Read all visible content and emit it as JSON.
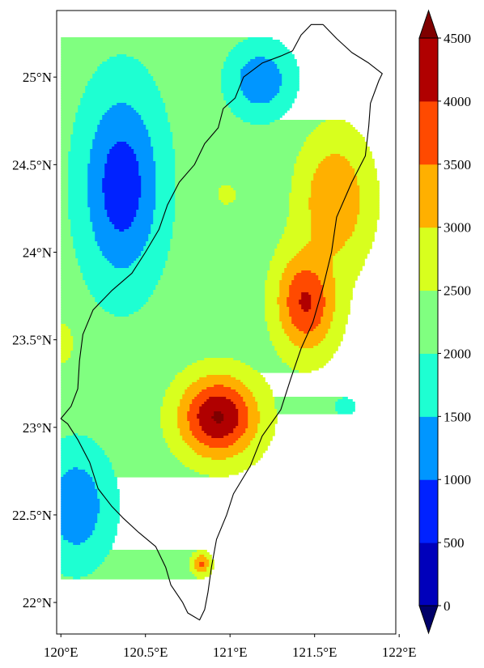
{
  "chart_data": {
    "type": "filled-contour-map",
    "title": "",
    "xlabel": "",
    "ylabel": "",
    "x_ticks": [
      {
        "value": 120.0,
        "label": "120°E"
      },
      {
        "value": 120.5,
        "label": "120.5°E"
      },
      {
        "value": 121.0,
        "label": "121°E"
      },
      {
        "value": 121.5,
        "label": "121.5°E"
      },
      {
        "value": 122.0,
        "label": "122°E"
      }
    ],
    "y_ticks": [
      {
        "value": 25.0,
        "label": "25°N"
      },
      {
        "value": 24.5,
        "label": "24.5°N"
      },
      {
        "value": 24.0,
        "label": "24°N"
      },
      {
        "value": 23.5,
        "label": "23.5°N"
      },
      {
        "value": 23.0,
        "label": "23°N"
      },
      {
        "value": 22.5,
        "label": "22.5°N"
      },
      {
        "value": 22.0,
        "label": "22°N"
      }
    ],
    "lon_range": [
      119.975,
      121.98
    ],
    "lat_range": [
      21.82,
      25.38
    ],
    "data_lon_range": [
      120.0,
      121.98
    ],
    "data_lat_range": [
      21.9,
      25.38
    ],
    "colorbar": {
      "levels": [
        0,
        500,
        1000,
        1500,
        2000,
        2500,
        3000,
        3500,
        4000,
        4500
      ],
      "labels": [
        "0",
        "500",
        "1000",
        "1500",
        "2000",
        "2500",
        "3000",
        "3500",
        "4000",
        "4500"
      ],
      "colors": [
        "#0000bb",
        "#0022ff",
        "#0096ff",
        "#1effd2",
        "#80ff80",
        "#d8ff1e",
        "#ffb000",
        "#ff4a00",
        "#b00000"
      ],
      "under_color": "#00006a",
      "over_color": "#7f0000",
      "extend": "both"
    },
    "background_level": 2250,
    "field_features": [
      {
        "lon": 120.36,
        "lat": 24.38,
        "value": 700,
        "rx": 0.3,
        "ry": 0.7
      },
      {
        "lon": 121.18,
        "lat": 24.98,
        "value": 1100,
        "rx": 0.24,
        "ry": 0.26
      },
      {
        "lon": 120.98,
        "lat": 24.33,
        "value": 2700,
        "rx": 0.09,
        "ry": 0.09
      },
      {
        "lon": 120.93,
        "lat": 23.06,
        "value": 4550,
        "rx": 0.29,
        "ry": 0.29
      },
      {
        "lon": 121.45,
        "lat": 23.72,
        "value": 4100,
        "rx": 0.22,
        "ry": 0.36
      },
      {
        "lon": 121.62,
        "lat": 24.3,
        "value": 3500,
        "rx": 0.26,
        "ry": 0.46
      },
      {
        "lon": 120.83,
        "lat": 22.22,
        "value": 3600,
        "rx": 0.07,
        "ry": 0.08
      },
      {
        "lon": 120.09,
        "lat": 22.55,
        "value": 1100,
        "rx": 0.26,
        "ry": 0.42
      },
      {
        "lon": 120.01,
        "lat": 23.48,
        "value": 2900,
        "rx": 0.08,
        "ry": 0.15
      },
      {
        "lon": 121.68,
        "lat": 23.12,
        "value": 1500,
        "rx": 0.07,
        "ry": 0.06
      }
    ],
    "coastline": [
      [
        121.55,
        25.3
      ],
      [
        121.48,
        25.3
      ],
      [
        121.42,
        25.24
      ],
      [
        121.37,
        25.15
      ],
      [
        121.3,
        25.12
      ],
      [
        121.19,
        25.08
      ],
      [
        121.08,
        25.0
      ],
      [
        121.03,
        24.88
      ],
      [
        120.96,
        24.82
      ],
      [
        120.93,
        24.71
      ],
      [
        120.85,
        24.62
      ],
      [
        120.79,
        24.5
      ],
      [
        120.7,
        24.4
      ],
      [
        120.63,
        24.27
      ],
      [
        120.58,
        24.13
      ],
      [
        120.5,
        24.0
      ],
      [
        120.42,
        23.88
      ],
      [
        120.3,
        23.78
      ],
      [
        120.19,
        23.67
      ],
      [
        120.13,
        23.53
      ],
      [
        120.11,
        23.38
      ],
      [
        120.1,
        23.22
      ],
      [
        120.06,
        23.12
      ],
      [
        120.0,
        23.05
      ],
      [
        120.04,
        23.02
      ],
      [
        120.1,
        22.93
      ],
      [
        120.17,
        22.8
      ],
      [
        120.22,
        22.65
      ],
      [
        120.3,
        22.55
      ],
      [
        120.37,
        22.48
      ],
      [
        120.46,
        22.4
      ],
      [
        120.56,
        22.32
      ],
      [
        120.62,
        22.2
      ],
      [
        120.65,
        22.1
      ],
      [
        120.72,
        22.0
      ],
      [
        120.75,
        21.94
      ],
      [
        120.82,
        21.9
      ],
      [
        120.85,
        21.96
      ],
      [
        120.87,
        22.06
      ],
      [
        120.89,
        22.2
      ],
      [
        120.92,
        22.36
      ],
      [
        120.98,
        22.5
      ],
      [
        121.02,
        22.62
      ],
      [
        121.12,
        22.78
      ],
      [
        121.19,
        22.95
      ],
      [
        121.3,
        23.1
      ],
      [
        121.36,
        23.28
      ],
      [
        121.42,
        23.45
      ],
      [
        121.49,
        23.6
      ],
      [
        121.55,
        23.8
      ],
      [
        121.6,
        24.0
      ],
      [
        121.63,
        24.2
      ],
      [
        121.72,
        24.4
      ],
      [
        121.8,
        24.55
      ],
      [
        121.82,
        24.72
      ],
      [
        121.83,
        24.85
      ],
      [
        121.88,
        24.98
      ],
      [
        121.9,
        25.02
      ],
      [
        121.82,
        25.08
      ],
      [
        121.72,
        25.14
      ],
      [
        121.63,
        25.22
      ],
      [
        121.55,
        25.3
      ]
    ]
  }
}
